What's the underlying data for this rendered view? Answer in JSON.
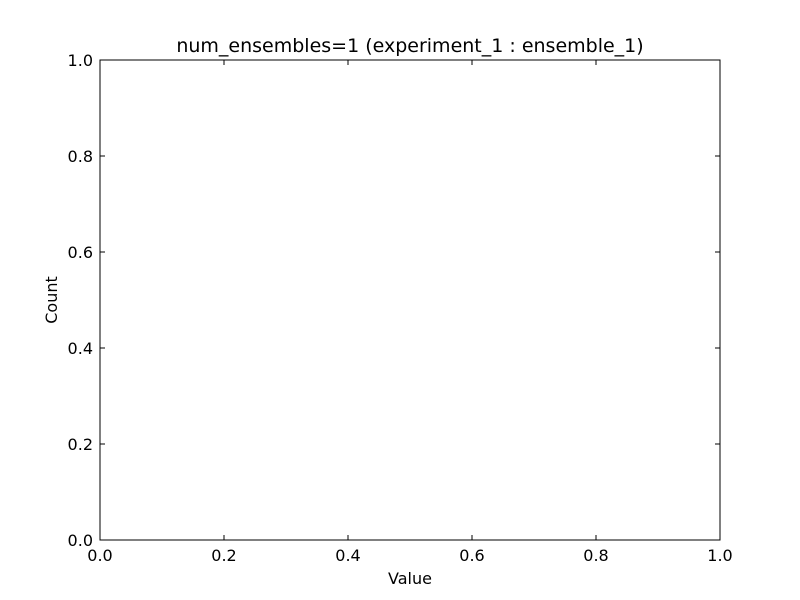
{
  "chart_data": {
    "type": "bar",
    "title": "num_ensembles=1 (experiment_1 : ensemble_1)",
    "xlabel": "Value",
    "ylabel": "Count",
    "xlim": [
      0.0,
      1.0
    ],
    "ylim": [
      0.0,
      1.0
    ],
    "xticks": [
      "0.0",
      "0.2",
      "0.4",
      "0.6",
      "0.8",
      "1.0"
    ],
    "yticks": [
      "0.0",
      "0.2",
      "0.4",
      "0.6",
      "0.8",
      "1.0"
    ],
    "categories": [],
    "values": [],
    "grid": false,
    "legend": "none",
    "colors": {
      "frame": "#000000",
      "background": "#ffffff"
    }
  }
}
